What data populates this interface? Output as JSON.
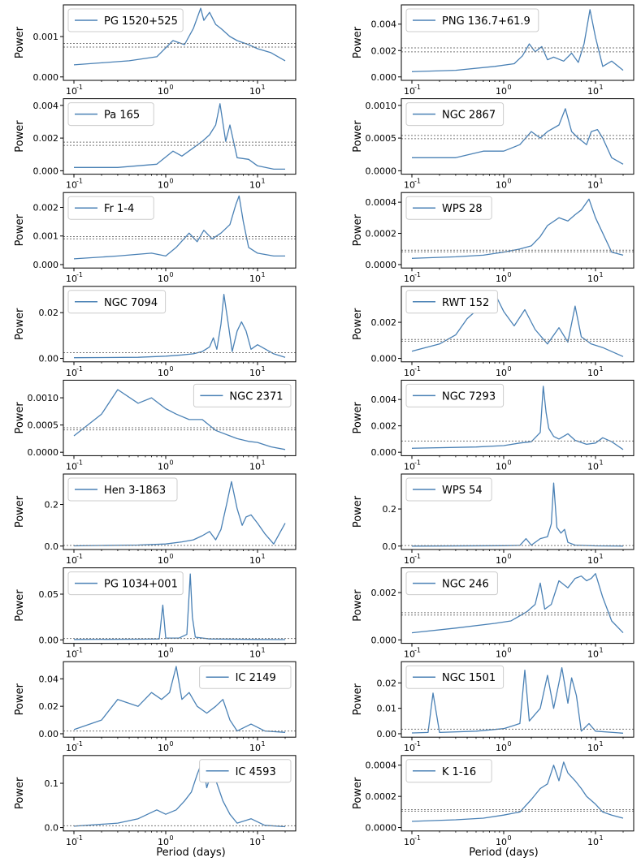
{
  "figure": {
    "xlabel": "Period (days)",
    "ylabel": "Power",
    "series_color": "#4a81b5",
    "threshold_color": "#777777",
    "x_ticks": [
      "10",
      "10",
      "10"
    ],
    "x_tick_exponents": [
      "-1",
      "0",
      "1"
    ]
  },
  "chart_data": [
    {
      "type": "line",
      "name": "PG 1520+525",
      "xlim": [
        0.1,
        20
      ],
      "ylim": [
        0,
        0.0017
      ],
      "yticks": [
        "0.000",
        "0.001"
      ],
      "ytick_values": [
        0,
        0.001
      ],
      "legend": "top-left",
      "thresholds": [
        0.00083,
        0.00074
      ],
      "x": [
        0.1,
        0.2,
        0.4,
        0.8,
        1.2,
        1.6,
        2.0,
        2.4,
        2.6,
        3.0,
        3.5,
        4.0,
        5.0,
        6.0,
        8.0,
        10,
        14,
        20
      ],
      "y": [
        0.0003,
        0.00035,
        0.0004,
        0.0005,
        0.0009,
        0.0008,
        0.0012,
        0.0017,
        0.0014,
        0.0016,
        0.0013,
        0.0012,
        0.001,
        0.0009,
        0.0008,
        0.0007,
        0.0006,
        0.0004
      ]
    },
    {
      "type": "line",
      "name": "PNG 136.7+61.9",
      "xlim": [
        0.1,
        20
      ],
      "ylim": [
        0,
        0.0052
      ],
      "yticks": [
        "0.000",
        "0.002",
        "0.004"
      ],
      "ytick_values": [
        0,
        0.002,
        0.004
      ],
      "legend": "top-left",
      "thresholds": [
        0.0022,
        0.0019
      ],
      "x": [
        0.1,
        0.3,
        0.8,
        1.3,
        1.6,
        1.9,
        2.2,
        2.6,
        3.0,
        3.5,
        4.5,
        5.5,
        6.5,
        7.5,
        8.7,
        10,
        12,
        15,
        20
      ],
      "y": [
        0.0004,
        0.0005,
        0.0008,
        0.001,
        0.0016,
        0.0025,
        0.0019,
        0.0023,
        0.0013,
        0.0015,
        0.0012,
        0.0018,
        0.0011,
        0.0025,
        0.0051,
        0.003,
        0.0008,
        0.0012,
        0.0005
      ]
    },
    {
      "type": "line",
      "name": "Pa 165",
      "xlim": [
        0.1,
        20
      ],
      "ylim": [
        0,
        0.0042
      ],
      "yticks": [
        "0.000",
        "0.002",
        "0.004"
      ],
      "ytick_values": [
        0,
        0.002,
        0.004
      ],
      "legend": "top-left",
      "thresholds": [
        0.00175,
        0.00155
      ],
      "x": [
        0.1,
        0.3,
        0.8,
        1.2,
        1.5,
        2.0,
        2.5,
        3.0,
        3.5,
        3.9,
        4.5,
        5.0,
        6.0,
        8.0,
        10,
        15,
        20
      ],
      "y": [
        0.0002,
        0.0002,
        0.0004,
        0.0012,
        0.0009,
        0.0014,
        0.0018,
        0.0022,
        0.0028,
        0.0041,
        0.0018,
        0.0028,
        0.0008,
        0.0007,
        0.0003,
        0.0001,
        0.0001
      ]
    },
    {
      "type": "line",
      "name": "NGC 2867",
      "xlim": [
        0.1,
        20
      ],
      "ylim": [
        0,
        0.00105
      ],
      "yticks": [
        "0.0000",
        "0.0005",
        "0.0010"
      ],
      "ytick_values": [
        0,
        0.0005,
        0.001
      ],
      "legend": "top-left",
      "thresholds": [
        0.00054,
        0.00049
      ],
      "x": [
        0.1,
        0.3,
        0.6,
        1.0,
        1.5,
        2.0,
        2.5,
        3.0,
        4.0,
        4.7,
        5.5,
        6.5,
        8.0,
        9.0,
        10.5,
        12,
        15,
        20
      ],
      "y": [
        0.0002,
        0.0002,
        0.0003,
        0.0003,
        0.0004,
        0.0006,
        0.0005,
        0.0006,
        0.0007,
        0.00095,
        0.0006,
        0.0005,
        0.0004,
        0.0006,
        0.00063,
        0.0005,
        0.0002,
        0.0001
      ]
    },
    {
      "type": "line",
      "name": "Fr 1-4",
      "xlim": [
        0.1,
        20
      ],
      "ylim": [
        0,
        0.0024
      ],
      "yticks": [
        "0.000",
        "0.001",
        "0.002"
      ],
      "ytick_values": [
        0,
        0.001,
        0.002
      ],
      "legend": "top-left",
      "thresholds": [
        0.00098,
        0.0009
      ],
      "x": [
        0.1,
        0.3,
        0.7,
        1.0,
        1.3,
        1.8,
        2.2,
        2.6,
        3.2,
        4.0,
        5.0,
        5.8,
        6.3,
        7.0,
        8.0,
        10,
        15,
        20
      ],
      "y": [
        0.0002,
        0.0003,
        0.0004,
        0.0003,
        0.0006,
        0.0011,
        0.0008,
        0.0012,
        0.0009,
        0.0011,
        0.0014,
        0.0021,
        0.0024,
        0.0015,
        0.0006,
        0.0004,
        0.0003,
        0.0003
      ]
    },
    {
      "type": "line",
      "name": "WPS 28",
      "xlim": [
        0.1,
        20
      ],
      "ylim": [
        0,
        0.00044
      ],
      "yticks": [
        "0.0000",
        "0.0002",
        "0.0004"
      ],
      "ytick_values": [
        0,
        0.0002,
        0.0004
      ],
      "legend": "top-left",
      "thresholds": [
        9.2e-05,
        8.2e-05
      ],
      "x": [
        0.1,
        0.3,
        0.6,
        1.0,
        1.5,
        2.0,
        2.5,
        3.0,
        4.0,
        5.0,
        6.0,
        7.0,
        8.5,
        10,
        15,
        20
      ],
      "y": [
        4e-05,
        5e-05,
        6e-05,
        8e-05,
        0.0001,
        0.00012,
        0.00018,
        0.00025,
        0.0003,
        0.00028,
        0.00032,
        0.00035,
        0.00042,
        0.0003,
        8e-05,
        6e-05
      ]
    },
    {
      "type": "line",
      "name": "NGC 7094",
      "xlim": [
        0.1,
        20
      ],
      "ylim": [
        0,
        0.03
      ],
      "yticks": [
        "0.00",
        "0.02"
      ],
      "ytick_values": [
        0,
        0.02
      ],
      "legend": "top-left",
      "thresholds": [
        0.0025
      ],
      "x": [
        0.1,
        0.5,
        1.0,
        1.5,
        2.0,
        2.5,
        3.0,
        3.3,
        3.6,
        4.0,
        4.3,
        4.8,
        5.3,
        6.0,
        6.7,
        7.5,
        8.5,
        10,
        15,
        20
      ],
      "y": [
        0.0003,
        0.0005,
        0.001,
        0.0015,
        0.002,
        0.003,
        0.005,
        0.009,
        0.004,
        0.015,
        0.028,
        0.015,
        0.003,
        0.012,
        0.016,
        0.012,
        0.004,
        0.006,
        0.002,
        0.0005
      ]
    },
    {
      "type": "line",
      "name": "RWT 152",
      "xlim": [
        0.1,
        20
      ],
      "ylim": [
        0,
        0.0038
      ],
      "yticks": [
        "0.000",
        "0.002"
      ],
      "ytick_values": [
        0,
        0.002
      ],
      "legend": "top-left",
      "thresholds": [
        0.00105,
        0.00095
      ],
      "x": [
        0.1,
        0.2,
        0.3,
        0.4,
        0.6,
        0.8,
        1.0,
        1.3,
        1.7,
        2.2,
        3.0,
        4.0,
        5.0,
        6.0,
        7.0,
        9.0,
        12,
        20
      ],
      "y": [
        0.0004,
        0.0008,
        0.0013,
        0.0022,
        0.003,
        0.0036,
        0.0026,
        0.0018,
        0.0027,
        0.0016,
        0.0008,
        0.0017,
        0.0009,
        0.0029,
        0.0012,
        0.0008,
        0.0006,
        0.0001
      ]
    },
    {
      "type": "line",
      "name": "NGC 2371",
      "xlim": [
        0.1,
        20
      ],
      "ylim": [
        0,
        0.00126
      ],
      "yticks": [
        "0.0000",
        "0.0005",
        "0.0010"
      ],
      "ytick_values": [
        0,
        0.0005,
        0.001
      ],
      "legend": "top-right",
      "thresholds": [
        0.00045,
        0.00041
      ],
      "x": [
        0.1,
        0.2,
        0.3,
        0.5,
        0.7,
        1.0,
        1.3,
        1.8,
        2.5,
        3.5,
        5.0,
        6.0,
        8.0,
        10,
        14,
        20
      ],
      "y": [
        0.0003,
        0.0007,
        0.00115,
        0.0009,
        0.001,
        0.0008,
        0.0007,
        0.0006,
        0.0006,
        0.0004,
        0.0003,
        0.00025,
        0.0002,
        0.00018,
        0.0001,
        5e-05
      ]
    },
    {
      "type": "line",
      "name": "NGC 7293",
      "xlim": [
        0.1,
        20
      ],
      "ylim": [
        0,
        0.0052
      ],
      "yticks": [
        "0.000",
        "0.002",
        "0.004"
      ],
      "ytick_values": [
        0,
        0.002,
        0.004
      ],
      "legend": "top-left",
      "thresholds": [
        0.00085
      ],
      "x": [
        0.1,
        0.5,
        1.0,
        1.5,
        2.0,
        2.5,
        2.7,
        2.9,
        3.1,
        3.5,
        4.0,
        5.0,
        6.0,
        8.0,
        10,
        12,
        15,
        20
      ],
      "y": [
        0.0003,
        0.0004,
        0.0005,
        0.0007,
        0.0008,
        0.0015,
        0.005,
        0.003,
        0.0018,
        0.0012,
        0.001,
        0.0014,
        0.0009,
        0.0006,
        0.0007,
        0.0011,
        0.0008,
        0.0002
      ]
    },
    {
      "type": "line",
      "name": "Hen 3-1863",
      "xlim": [
        0.1,
        20
      ],
      "ylim": [
        0,
        0.33
      ],
      "yticks": [
        "0.0",
        "0.2"
      ],
      "ytick_values": [
        0,
        0.2
      ],
      "legend": "top-left",
      "thresholds": [
        0.003
      ],
      "x": [
        0.1,
        0.5,
        1.0,
        1.5,
        2.0,
        2.5,
        3.0,
        3.5,
        4.0,
        4.6,
        5.2,
        6.0,
        6.8,
        7.5,
        8.5,
        10,
        12,
        15,
        20
      ],
      "y": [
        0.001,
        0.005,
        0.01,
        0.02,
        0.03,
        0.05,
        0.07,
        0.03,
        0.08,
        0.2,
        0.31,
        0.18,
        0.1,
        0.14,
        0.15,
        0.11,
        0.06,
        0.01,
        0.11
      ]
    },
    {
      "type": "line",
      "name": "WPS 54",
      "xlim": [
        0.1,
        20
      ],
      "ylim": [
        0,
        0.37
      ],
      "yticks": [
        "0.0",
        "0.2"
      ],
      "ytick_values": [
        0,
        0.2
      ],
      "legend": "top-left",
      "thresholds": [
        0.003
      ],
      "x": [
        0.1,
        1.0,
        1.5,
        1.75,
        2.0,
        2.5,
        3.0,
        3.3,
        3.5,
        3.8,
        4.2,
        4.6,
        5.0,
        6.0,
        10,
        20
      ],
      "y": [
        0.0,
        0.002,
        0.004,
        0.04,
        0.005,
        0.04,
        0.05,
        0.12,
        0.34,
        0.1,
        0.07,
        0.09,
        0.02,
        0.005,
        0.001,
        0.0
      ]
    },
    {
      "type": "line",
      "name": "PG 1034+001",
      "xlim": [
        0.1,
        20
      ],
      "ylim": [
        0,
        0.075
      ],
      "yticks": [
        "0.00",
        "0.05"
      ],
      "ytick_values": [
        0,
        0.05
      ],
      "legend": "top-left",
      "thresholds": [
        0.0015
      ],
      "x": [
        0.1,
        0.5,
        0.85,
        0.93,
        1.0,
        1.4,
        1.7,
        1.85,
        1.95,
        2.1,
        3.0,
        10,
        20
      ],
      "y": [
        0.0005,
        0.0008,
        0.001,
        0.038,
        0.002,
        0.002,
        0.006,
        0.072,
        0.025,
        0.003,
        0.001,
        0.0005,
        0.0003
      ]
    },
    {
      "type": "line",
      "name": "NGC 246",
      "xlim": [
        0.1,
        20
      ],
      "ylim": [
        0,
        0.0029
      ],
      "yticks": [
        "0.000",
        "0.002"
      ],
      "ytick_values": [
        0,
        0.002
      ],
      "legend": "top-left",
      "thresholds": [
        0.00115,
        0.00105
      ],
      "x": [
        0.1,
        0.3,
        0.8,
        1.2,
        1.8,
        2.2,
        2.5,
        2.8,
        3.3,
        4.0,
        5.0,
        6.0,
        7.0,
        8.0,
        9.0,
        10,
        12,
        15,
        20
      ],
      "y": [
        0.0003,
        0.0005,
        0.0007,
        0.0008,
        0.0012,
        0.0015,
        0.0024,
        0.0013,
        0.0015,
        0.0025,
        0.0022,
        0.0026,
        0.0027,
        0.0025,
        0.0026,
        0.0028,
        0.0018,
        0.0008,
        0.0003
      ]
    },
    {
      "type": "line",
      "name": "IC 2149",
      "xlim": [
        0.1,
        20
      ],
      "ylim": [
        0,
        0.05
      ],
      "yticks": [
        "0.00",
        "0.02",
        "0.04"
      ],
      "ytick_values": [
        0,
        0.02,
        0.04
      ],
      "legend": "top-right",
      "thresholds": [
        0.002
      ],
      "x": [
        0.1,
        0.2,
        0.3,
        0.5,
        0.7,
        0.9,
        1.1,
        1.3,
        1.5,
        1.8,
        2.2,
        2.8,
        3.5,
        4.2,
        5.0,
        6.0,
        8.5,
        12,
        20
      ],
      "y": [
        0.003,
        0.01,
        0.025,
        0.02,
        0.03,
        0.025,
        0.03,
        0.049,
        0.025,
        0.03,
        0.02,
        0.015,
        0.02,
        0.025,
        0.01,
        0.002,
        0.007,
        0.002,
        0.001
      ]
    },
    {
      "type": "line",
      "name": "NGC 1501",
      "xlim": [
        0.1,
        20
      ],
      "ylim": [
        0,
        0.027
      ],
      "yticks": [
        "0.00",
        "0.01",
        "0.02"
      ],
      "ytick_values": [
        0,
        0.01,
        0.02
      ],
      "legend": "top-left",
      "thresholds": [
        0.0018
      ],
      "x": [
        0.1,
        0.15,
        0.17,
        0.2,
        0.5,
        1.0,
        1.5,
        1.7,
        1.9,
        2.5,
        3.0,
        3.5,
        4.0,
        4.3,
        5.0,
        5.5,
        6.2,
        7.0,
        8.5,
        10,
        20
      ],
      "y": [
        0.0003,
        0.0005,
        0.016,
        0.0005,
        0.001,
        0.002,
        0.004,
        0.025,
        0.005,
        0.01,
        0.023,
        0.01,
        0.02,
        0.026,
        0.012,
        0.022,
        0.015,
        0.001,
        0.004,
        0.001,
        0.0002
      ]
    },
    {
      "type": "line",
      "name": "IC 4593",
      "xlim": [
        0.1,
        20
      ],
      "ylim": [
        0,
        0.155
      ],
      "yticks": [
        "0.0",
        "0.1"
      ],
      "ytick_values": [
        0,
        0.1
      ],
      "legend": "top-right",
      "thresholds": [
        0.004
      ],
      "x": [
        0.1,
        0.3,
        0.5,
        0.8,
        1.0,
        1.3,
        1.6,
        1.9,
        2.2,
        2.5,
        2.8,
        3.2,
        3.6,
        4.2,
        5.0,
        6.0,
        8.5,
        12,
        20
      ],
      "y": [
        0.003,
        0.01,
        0.02,
        0.04,
        0.03,
        0.04,
        0.06,
        0.08,
        0.12,
        0.15,
        0.09,
        0.13,
        0.1,
        0.06,
        0.03,
        0.01,
        0.02,
        0.005,
        0.002
      ]
    },
    {
      "type": "line",
      "name": "K 1-16",
      "xlim": [
        0.1,
        20
      ],
      "ylim": [
        0,
        0.00044
      ],
      "yticks": [
        "0.0000",
        "0.0002",
        "0.0004"
      ],
      "ytick_values": [
        0,
        0.0002,
        0.0004
      ],
      "legend": "top-left",
      "thresholds": [
        0.000115,
        0.000105
      ],
      "x": [
        0.1,
        0.3,
        0.6,
        1.0,
        1.5,
        2.0,
        2.5,
        3.0,
        3.5,
        4.0,
        4.5,
        5.0,
        6.0,
        7.0,
        8.0,
        10,
        12,
        15,
        20
      ],
      "y": [
        4e-05,
        5e-05,
        6e-05,
        8e-05,
        0.0001,
        0.00018,
        0.00025,
        0.00028,
        0.0004,
        0.0003,
        0.00042,
        0.00035,
        0.0003,
        0.00025,
        0.0002,
        0.00015,
        0.0001,
        8e-05,
        6e-05
      ]
    }
  ]
}
